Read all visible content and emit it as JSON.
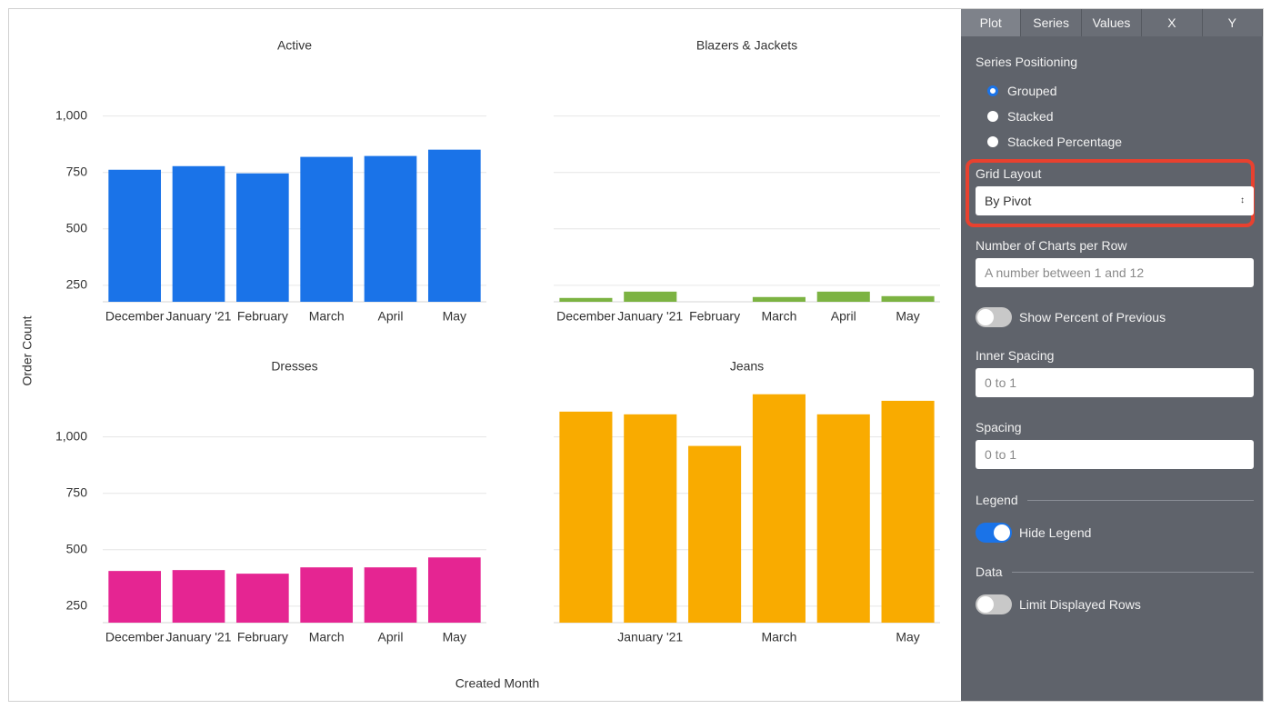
{
  "chart_data": [
    {
      "type": "bar",
      "title": "Active",
      "categories": [
        "December",
        "January '21",
        "February",
        "March",
        "April",
        "May"
      ],
      "values": [
        762,
        778,
        746,
        819,
        823,
        851
      ],
      "color": "#1a73e8",
      "ylim": [
        177,
        1200
      ],
      "yticks": [
        250,
        500,
        750,
        {
          "value": 1000,
          "label": "1,000"
        }
      ],
      "ytick_labels": true,
      "grid": true
    },
    {
      "type": "bar",
      "title": "Blazers & Jackets",
      "categories": [
        "December",
        "January '21",
        "February",
        "March",
        "April",
        "May"
      ],
      "values": [
        194,
        222,
        null,
        198,
        222,
        202
      ],
      "color": "#7cb342",
      "ylim": [
        177,
        1200
      ],
      "yticks": [
        250,
        500,
        750,
        1000
      ],
      "ytick_labels": false,
      "grid": true
    },
    {
      "type": "bar",
      "title": "Dresses",
      "categories": [
        "December",
        "January '21",
        "February",
        "March",
        "April",
        "May"
      ],
      "values": [
        406,
        410,
        394,
        422,
        422,
        466
      ],
      "color": "#e52592",
      "ylim": [
        177,
        1200
      ],
      "yticks": [
        250,
        500,
        750,
        {
          "value": 1000,
          "label": "1,000"
        }
      ],
      "ytick_labels": true,
      "grid": true
    },
    {
      "type": "bar",
      "title": "Jeans",
      "categories": [
        null,
        "January '21",
        null,
        "March",
        null,
        "May"
      ],
      "values": [
        1112,
        1100,
        960,
        1189,
        1100,
        1160
      ],
      "color": "#f9ab00",
      "ylim": [
        177,
        1200
      ],
      "yticks": [
        250,
        500,
        750,
        1000
      ],
      "ytick_labels": false,
      "grid": true
    }
  ],
  "axis_labels": {
    "y": "Order Count",
    "x": "Created Month"
  },
  "panel": {
    "tabs": [
      "Plot",
      "Series",
      "Values",
      "X",
      "Y"
    ],
    "series_positioning": {
      "label": "Series Positioning",
      "options": [
        "Grouped",
        "Stacked",
        "Stacked Percentage"
      ],
      "selected_index": 0
    },
    "grid_layout": {
      "label": "Grid Layout",
      "value": "By Pivot"
    },
    "charts_per_row": {
      "label": "Number of Charts per Row",
      "placeholder": "A number between 1 and 12"
    },
    "show_percent": {
      "label": "Show Percent of Previous",
      "on": false
    },
    "inner_spacing": {
      "label": "Inner Spacing",
      "placeholder": "0 to 1"
    },
    "spacing": {
      "label": "Spacing",
      "placeholder": "0 to 1"
    },
    "legend": {
      "header": "Legend",
      "hide_legend": {
        "label": "Hide Legend",
        "on": true
      }
    },
    "data": {
      "header": "Data",
      "limit_rows": {
        "label": "Limit Displayed Rows",
        "on": false
      }
    }
  }
}
